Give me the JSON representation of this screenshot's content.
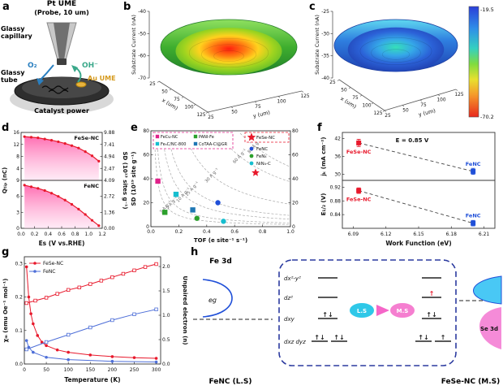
{
  "panel_letters": {
    "a": "a",
    "b": "b",
    "c": "c",
    "d": "d",
    "e": "e",
    "f": "f",
    "g": "g",
    "h": "h"
  },
  "panel_a": {
    "title1": "Pt UME",
    "title2": "(Probe, 10 um)",
    "glassy_capillary": "Glassy capillary",
    "glassy_tube": "Glassy tube",
    "o2": "O₂",
    "oh": "OH⁻",
    "au_ume": "Au UME",
    "catalyst": "Catalyst power"
  },
  "panel_h": {
    "fe3d": "Fe 3d",
    "eg": "eg",
    "orbitals": [
      "dx²-y²",
      "dz²",
      "dxy",
      "dxz dyz"
    ],
    "pair_up_down": "↑↓",
    "single_up": "↑",
    "ls_badge": "L.S",
    "ms_badge": "M.S",
    "fenc_caption": "FeNC (L.S)",
    "fesenc_caption": "FeSe-NC (M.S)",
    "se3d": "Se 3d"
  },
  "chart_data": [
    {
      "id": "b",
      "type": "surface3d",
      "zlabel": "Substrate Current (nA)",
      "xlabel": "x (um)",
      "ylabel": "y (um)",
      "z_ticks": [
        -40,
        -50,
        -60,
        -70
      ],
      "x_ticks": [
        25,
        50,
        75,
        100,
        125
      ],
      "y_ticks": [
        25,
        50,
        75,
        100,
        125
      ],
      "z_range": [
        -70,
        -40
      ],
      "shape": "bowl-shaped current map, minimum at center, rainbow colormap (green rim to red center)"
    },
    {
      "id": "c",
      "type": "surface3d",
      "zlabel": "Substrate Current (nA)",
      "xlabel": "x (um)",
      "ylabel": "y (um)",
      "z_ticks": [
        -25,
        -30,
        -35,
        -40
      ],
      "x_ticks": [
        25,
        50,
        75,
        100,
        125
      ],
      "y_ticks": [
        25,
        50,
        75,
        100,
        125
      ],
      "z_range": [
        -40,
        -25
      ],
      "colorbar": {
        "top_label": "-19.5",
        "bottom_label": "-70.2"
      },
      "shape": "bowl-shaped current map, blue colormap with cyan-green center"
    },
    {
      "id": "d",
      "type": "dual-line-area",
      "xlabel": "Es (V vs.RHE)",
      "xlim": [
        0,
        1.2
      ],
      "x_ticks": [
        "0.0",
        "0.2",
        "0.4",
        "0.6",
        "0.8",
        "1.0",
        "1.2"
      ],
      "ylabel_left": "Qₜᵢₚ (nC)",
      "ylabel_right": "SD (10¹³ sites g⁻¹)",
      "panels": [
        {
          "label": "FeSe-NC",
          "ylim": [
            0,
            16
          ],
          "ytick_vals": [
            16,
            12,
            8,
            4
          ],
          "yticks_left": [
            "16",
            "12",
            "8",
            "4"
          ],
          "yticks_right": [
            "9.88",
            "7.41",
            "4.94",
            "2.47"
          ],
          "line_color": "#e8192c",
          "x": [
            0.05,
            0.15,
            0.25,
            0.35,
            0.45,
            0.55,
            0.65,
            0.75,
            0.85,
            0.95,
            1.05,
            1.15
          ],
          "y": [
            14.6,
            14.4,
            14.2,
            13.8,
            13.4,
            12.9,
            12.3,
            11.6,
            10.8,
            9.6,
            8.2,
            6.4
          ]
        },
        {
          "label": "FeNC",
          "ylim": [
            0,
            9
          ],
          "ytick_vals": [
            9,
            6,
            3,
            0
          ],
          "yticks_left": [
            "9",
            "6",
            "3",
            "0"
          ],
          "yticks_right": [
            "4.09",
            "2.72",
            "1.36",
            "0.00"
          ],
          "line_color": "#e8192c",
          "x": [
            0.05,
            0.15,
            0.25,
            0.35,
            0.45,
            0.55,
            0.65,
            0.75,
            0.85,
            0.95,
            1.05,
            1.15
          ],
          "y": [
            8.1,
            7.8,
            7.5,
            7.1,
            6.6,
            6.0,
            5.3,
            4.5,
            3.6,
            2.6,
            1.5,
            0.5
          ]
        }
      ]
    },
    {
      "id": "e",
      "type": "scatter",
      "xlabel": "TOF (e site⁻¹ s⁻¹)",
      "ylabel": "SD (10¹⁹ site g⁻¹)",
      "xlim": [
        0,
        1.0
      ],
      "ylim": [
        0,
        80
      ],
      "x_ticks": [
        "0.0",
        "0.2",
        "0.4",
        "0.6",
        "0.8",
        "1.0"
      ],
      "y_ticks": [
        0,
        20,
        40,
        60,
        80
      ],
      "iso_lines": [
        {
          "label": "3 A g⁻¹",
          "k": 1.87
        },
        {
          "label": "5 A g⁻¹",
          "k": 3.12
        },
        {
          "label": "10 A g⁻¹",
          "k": 6.24
        },
        {
          "label": "15 A g⁻¹",
          "k": 9.36
        },
        {
          "label": "30 A g⁻¹",
          "k": 18.7
        },
        {
          "label": "60 A g⁻¹",
          "k": 37.4
        },
        {
          "label": "80 A g⁻¹",
          "k": 49.9
        }
      ],
      "legend1": [
        {
          "name": "FeCu-NC",
          "color": "#e0218a",
          "marker": "square"
        },
        {
          "name": "PANI-Fe",
          "color": "#2ca02c",
          "marker": "square"
        },
        {
          "name": "Fe₃C/NC-800",
          "color": "#17becf",
          "marker": "square"
        },
        {
          "name": "CoTAA-Cl@GR",
          "color": "#1f77b4",
          "marker": "square"
        }
      ],
      "legend2_star": {
        "name": "FeSe-NC",
        "color": "#e8192c",
        "marker": "star"
      },
      "legend2_list": [
        {
          "name": "FeNC",
          "color": "#1f4fd8",
          "marker": "circle"
        },
        {
          "name": "FeN₄",
          "color": "#2ca02c",
          "marker": "circle"
        },
        {
          "name": "NiN₄-C",
          "color": "#17becf",
          "marker": "circle"
        }
      ],
      "points": [
        {
          "name": "FeCu-NC",
          "x": 0.05,
          "y": 38,
          "color": "#e0218a",
          "marker": "square"
        },
        {
          "name": "PANI-Fe",
          "x": 0.1,
          "y": 12,
          "color": "#2ca02c",
          "marker": "square"
        },
        {
          "name": "Fe₃C/NC-800",
          "x": 0.18,
          "y": 27,
          "color": "#17becf",
          "marker": "square"
        },
        {
          "name": "CoTAA-Cl@GR",
          "x": 0.3,
          "y": 14,
          "color": "#1f77b4",
          "marker": "square"
        },
        {
          "name": "NiN₄-C",
          "x": 0.52,
          "y": 4.5,
          "color": "#17becf",
          "marker": "circle"
        },
        {
          "name": "FeN₄",
          "x": 0.33,
          "y": 7,
          "color": "#2ca02c",
          "marker": "circle"
        },
        {
          "name": "FeNC",
          "x": 0.48,
          "y": 20,
          "color": "#1f4fd8",
          "marker": "circle"
        },
        {
          "name": "FeSe-NC",
          "x": 0.75,
          "y": 45,
          "color": "#e8192c",
          "marker": "star"
        }
      ]
    },
    {
      "id": "f",
      "type": "dual-scatter",
      "xlabel": "Work Function (eV)",
      "xlim": [
        6.08,
        6.22
      ],
      "x_ticks": [
        "6.09",
        "6.12",
        "6.15",
        "6.18",
        "6.21"
      ],
      "x_tick_vals": [
        6.09,
        6.12,
        6.15,
        6.18,
        6.21
      ],
      "annotation": "E = 0.85 V",
      "panels": [
        {
          "ylabel": "jₖ (mA cm⁻²)",
          "ylim": [
            28,
            44
          ],
          "y_ticks": [
            "42",
            "36",
            "30"
          ],
          "y_tick_vals": [
            42,
            36,
            30
          ],
          "points": [
            {
              "name": "FeSe-NC",
              "x": 6.095,
              "y": 40.5,
              "err": 1.2,
              "color": "#e8192c"
            },
            {
              "name": "FeNC",
              "x": 6.2,
              "y": 31.0,
              "err": 1.0,
              "color": "#1f4fd8"
            }
          ]
        },
        {
          "ylabel": "E₁/₂ (V)",
          "ylim": [
            0.8,
            0.94
          ],
          "y_ticks": [
            "0.92",
            "0.88",
            "0.84"
          ],
          "y_tick_vals": [
            0.92,
            0.88,
            0.84
          ],
          "points": [
            {
              "name": "FeSe-NC",
              "x": 6.095,
              "y": 0.91,
              "err": 0.008,
              "color": "#e8192c"
            },
            {
              "name": "FeNC",
              "x": 6.2,
              "y": 0.815,
              "err": 0.008,
              "color": "#1f4fd8"
            }
          ]
        }
      ]
    },
    {
      "id": "g",
      "type": "multi-line",
      "xlabel": "Temperature (K)",
      "xlim": [
        0,
        310
      ],
      "x_ticks": [
        0,
        50,
        100,
        150,
        200,
        250,
        300
      ],
      "ylabel_left": "χₘ (emu Oe⁻¹ mol⁻¹)",
      "ylim_left": [
        0,
        0.32
      ],
      "yticks_left": [
        "0.0",
        "0.1",
        "0.2",
        "0.3"
      ],
      "ytick_vals_left": [
        0,
        0.1,
        0.2,
        0.3
      ],
      "ylabel_right": "Unpaired electron (n)",
      "ylim_right": [
        0,
        2.2
      ],
      "yticks_right": [
        "0.0",
        "0.5",
        "1.0",
        "1.5",
        "2.0"
      ],
      "ytick_vals_right": [
        0,
        0.5,
        1.0,
        1.5,
        2.0
      ],
      "legend": [
        {
          "name": "FeSe-NC",
          "color": "#e8192c"
        },
        {
          "name": "FeNC",
          "color": "#4e6fd8"
        }
      ],
      "series": [
        {
          "name": "FeSe-NC χₘ",
          "axis": "left",
          "marker": "filled",
          "color": "#e8192c",
          "x": [
            5,
            10,
            15,
            20,
            30,
            40,
            50,
            75,
            100,
            150,
            200,
            250,
            300
          ],
          "y": [
            0.29,
            0.2,
            0.15,
            0.12,
            0.085,
            0.065,
            0.055,
            0.042,
            0.035,
            0.027,
            0.022,
            0.019,
            0.017
          ]
        },
        {
          "name": "FeNC χₘ",
          "axis": "left",
          "marker": "filled",
          "color": "#4e6fd8",
          "x": [
            5,
            10,
            20,
            50,
            100,
            200,
            300
          ],
          "y": [
            0.07,
            0.05,
            0.035,
            0.02,
            0.013,
            0.008,
            0.006
          ]
        },
        {
          "name": "FeSe-NC n",
          "axis": "right",
          "marker": "open",
          "color": "#e8192c",
          "x": [
            5,
            25,
            50,
            75,
            100,
            125,
            150,
            175,
            200,
            225,
            250,
            275,
            300
          ],
          "y": [
            1.25,
            1.3,
            1.36,
            1.44,
            1.52,
            1.57,
            1.64,
            1.71,
            1.78,
            1.85,
            1.92,
            1.99,
            2.05
          ]
        },
        {
          "name": "FeNC n",
          "axis": "right",
          "marker": "open",
          "color": "#4e6fd8",
          "x": [
            5,
            50,
            100,
            150,
            200,
            250,
            300
          ],
          "y": [
            0.3,
            0.45,
            0.6,
            0.75,
            0.9,
            1.02,
            1.12
          ]
        }
      ]
    }
  ]
}
